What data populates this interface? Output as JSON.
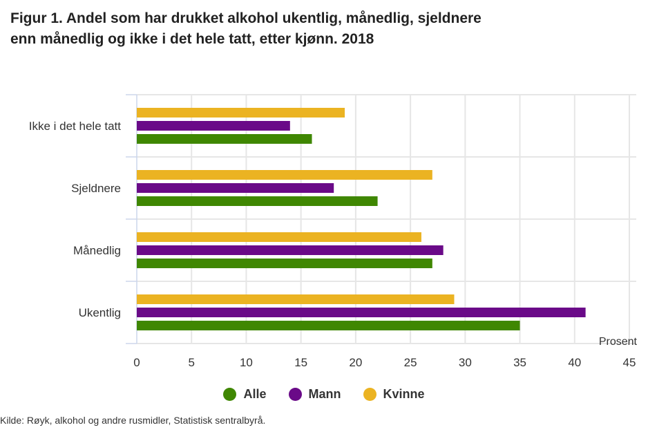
{
  "title_line1": "Figur 1. Andel som har drukket alkohol ukentlig, månedlig, sjeldnere",
  "title_line2": "enn månedlig og ikke i det hele tatt, etter kjønn. 2018",
  "source": "Kilde: Røyk, alkohol og andre rusmidler, Statistisk sentralbyrå.",
  "chart_data": {
    "type": "bar",
    "orientation": "horizontal",
    "title": "Figur 1. Andel som har drukket alkohol ukentlig, månedlig, sjeldnere enn månedlig og ikke i det hele tatt, etter kjønn. 2018",
    "categories": [
      "Ikke i det hele tatt",
      "Sjeldnere",
      "Månedlig",
      "Ukentlig"
    ],
    "series": [
      {
        "name": "Kvinne",
        "color": "#ebb322",
        "values": [
          19,
          27,
          26,
          29
        ]
      },
      {
        "name": "Mann",
        "color": "#6a0a88",
        "values": [
          14,
          18,
          28,
          41
        ]
      },
      {
        "name": "Alle",
        "color": "#3f8702",
        "values": [
          16,
          22,
          27,
          35
        ]
      }
    ],
    "legend_order": [
      "Alle",
      "Mann",
      "Kvinne"
    ],
    "xlabel": "Prosent",
    "ylabel": "",
    "xlim": [
      0,
      45
    ],
    "xticks": [
      0,
      5,
      10,
      15,
      20,
      25,
      30,
      35,
      40,
      45
    ],
    "grid": true,
    "legend_position": "bottom"
  }
}
